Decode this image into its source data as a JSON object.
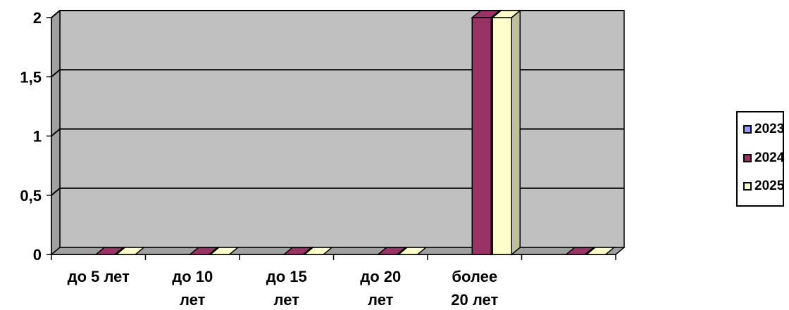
{
  "chart_data": {
    "type": "bar",
    "categories": [
      "до 5 лет",
      "до 10 лет",
      "до 15 лет",
      "до 20 лет",
      "более 20 лет",
      ""
    ],
    "category_lines": [
      [
        "до 5 лет"
      ],
      [
        "до 10",
        "лет"
      ],
      [
        "до 15",
        "лет"
      ],
      [
        "до 20",
        "лет"
      ],
      [
        "более",
        "20 лет"
      ],
      []
    ],
    "series": [
      {
        "name": "2023",
        "values": [
          0,
          0,
          0,
          0,
          0,
          0
        ],
        "color": "#9999FF"
      },
      {
        "name": "2024",
        "values": [
          0,
          0,
          0,
          0,
          2,
          0
        ],
        "color": "#993366"
      },
      {
        "name": "2025",
        "values": [
          0,
          0,
          0,
          0,
          2,
          0
        ],
        "color": "#FFFFCC"
      }
    ],
    "yticks": [
      "0",
      "0,5",
      "1",
      "1,5",
      "2"
    ],
    "ylim": [
      0,
      2
    ],
    "grid": true,
    "legend": "right",
    "plot_color": "#C0C0C0",
    "wall_shade": "#A0A0A0"
  },
  "legend": {
    "items": [
      {
        "label": "2023",
        "color": "#9999FF"
      },
      {
        "label": "2024",
        "color": "#993366"
      },
      {
        "label": "2025",
        "color": "#FFFFCC"
      }
    ]
  }
}
